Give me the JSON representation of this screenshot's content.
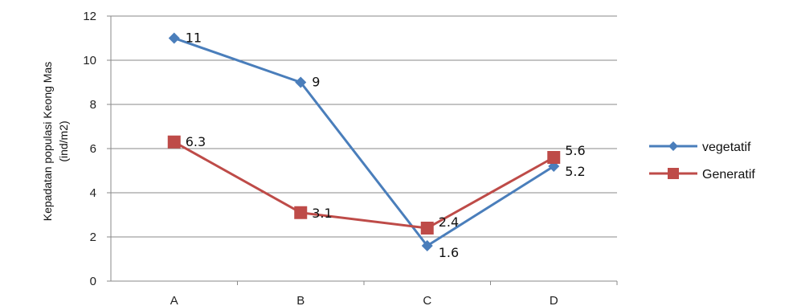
{
  "chart_data": {
    "type": "line",
    "categories": [
      "A",
      "B",
      "C",
      "D"
    ],
    "ylabel_line1": "Kepadatan populasi Keong Mas",
    "ylabel_line2": "(ind/m2)",
    "ylim": [
      0,
      12
    ],
    "yticks": [
      0,
      2,
      4,
      6,
      8,
      10,
      12
    ],
    "grid": true,
    "legend_position": "right",
    "series": [
      {
        "name": "vegetatif",
        "values": [
          11,
          9,
          1.6,
          5.2
        ],
        "labels": [
          "11",
          "9",
          "1.6",
          "5.2"
        ],
        "color": "#4a7ebb",
        "marker": "diamond"
      },
      {
        "name": "Generatif",
        "values": [
          6.3,
          3.1,
          2.4,
          5.6
        ],
        "labels": [
          "6.3",
          "3.1",
          "2.4",
          "5.6"
        ],
        "color": "#be4b48",
        "marker": "square"
      }
    ]
  }
}
